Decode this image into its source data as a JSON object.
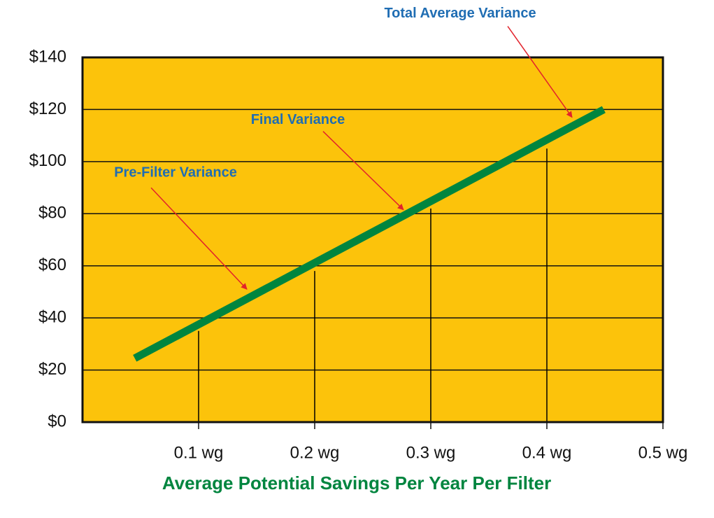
{
  "chart_data": {
    "type": "line",
    "x_label": "Average Potential Savings Per Year Per Filter",
    "series": [
      {
        "color": "#00853f",
        "x": [
          0.045,
          0.449
        ],
        "values": [
          24.5,
          120
        ]
      }
    ],
    "stems": {
      "x": [
        0.1,
        0.2,
        0.3,
        0.4
      ],
      "values": [
        35,
        58,
        82,
        105
      ],
      "color": "#000000"
    },
    "xlim": [
      0,
      0.5
    ],
    "ylim": [
      0,
      140
    ],
    "xticks": [
      {
        "value": 0.1,
        "label": "0.1 wg"
      },
      {
        "value": 0.2,
        "label": "0.2 wg"
      },
      {
        "value": 0.3,
        "label": "0.3 wg"
      },
      {
        "value": 0.4,
        "label": "0.4 wg"
      },
      {
        "value": 0.5,
        "label": "0.5 wg"
      }
    ],
    "yticks": [
      {
        "value": 0,
        "label": "$0"
      },
      {
        "value": 20,
        "label": "$20"
      },
      {
        "value": 40,
        "label": "$40"
      },
      {
        "value": 60,
        "label": "$60"
      },
      {
        "value": 80,
        "label": "$80"
      },
      {
        "value": 100,
        "label": "$100"
      },
      {
        "value": 120,
        "label": "$120"
      },
      {
        "value": 140,
        "label": "$140"
      }
    ],
    "grid": true,
    "background": "#fcc30b",
    "annotations": [
      {
        "text": "Total Average Variance",
        "x": 0.4217,
        "y": 117
      },
      {
        "text": "Final Variance",
        "x": 0.2765,
        "y": 81.5
      },
      {
        "text": "Pre-Filter Variance",
        "x": 0.1416,
        "y": 51
      }
    ]
  }
}
